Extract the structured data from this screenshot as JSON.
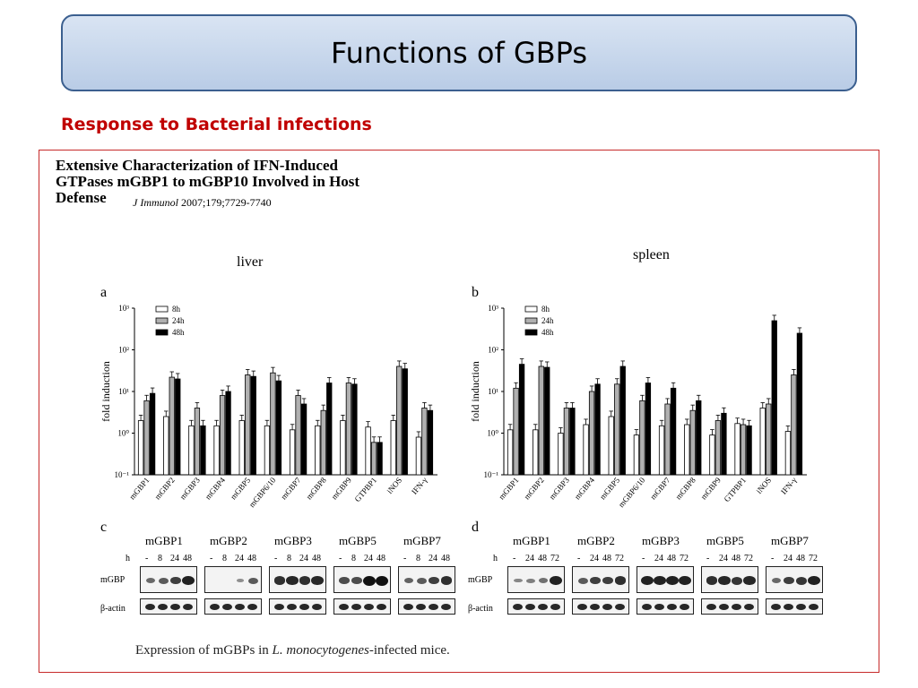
{
  "slide": {
    "title": "Functions of GBPs",
    "subheading": "Response to Bacterial infections"
  },
  "paper": {
    "title_line1": "Extensive Characterization of IFN-Induced",
    "title_line2": "GTPases mGBP1 to mGBP10 Involved in Host",
    "title_line3": "Defense",
    "journal": "J Immunol",
    "citation": "2007;179;7729-7740"
  },
  "panels": {
    "liver_title": "liver",
    "spleen_title": "spleen",
    "a": "a",
    "b": "b",
    "c": "c",
    "d": "d"
  },
  "chart_data": [
    {
      "type": "bar",
      "panel": "a",
      "title": "liver",
      "ylabel": "fold induction",
      "yscale": "log",
      "ylim": [
        0.1,
        1000
      ],
      "ytick_labels": [
        "10⁻¹",
        "10⁰",
        "10¹",
        "10²",
        "10³"
      ],
      "legend": [
        "8h",
        "24h",
        "48h"
      ],
      "series_colors": [
        "#ffffff",
        "#b0b0b0",
        "#000000"
      ],
      "categories": [
        "mGBP1",
        "mGBP2",
        "mGBP3",
        "mGBP4",
        "mGBP5",
        "mGBP6/10",
        "mGBP7",
        "mGBP8",
        "mGBP9",
        "GTPBP1",
        "iNOS",
        "IFN-γ"
      ],
      "series": [
        {
          "name": "8h",
          "values": [
            2.0,
            2.5,
            1.5,
            1.5,
            2.0,
            1.5,
            1.2,
            1.5,
            2.0,
            1.4,
            2.0,
            0.8
          ]
        },
        {
          "name": "24h",
          "values": [
            6.0,
            22,
            4.0,
            8.0,
            25,
            28,
            8.0,
            3.5,
            16,
            0.6,
            40,
            4.0
          ]
        },
        {
          "name": "48h",
          "values": [
            9.0,
            20,
            1.5,
            10,
            23,
            18,
            5.0,
            16,
            15,
            0.6,
            35,
            3.5
          ]
        }
      ]
    },
    {
      "type": "bar",
      "panel": "b",
      "title": "spleen",
      "ylabel": "fold induction",
      "yscale": "log",
      "ylim": [
        0.1,
        1000
      ],
      "ytick_labels": [
        "10⁻¹",
        "10⁰",
        "10¹",
        "10²",
        "10³"
      ],
      "legend": [
        "8h",
        "24h",
        "48h"
      ],
      "series_colors": [
        "#ffffff",
        "#b0b0b0",
        "#000000"
      ],
      "categories": [
        "mGBP1",
        "mGBP2",
        "mGBP3",
        "mGBP4",
        "mGBP5",
        "mGBP6/10",
        "mGBP7",
        "mGBP8",
        "mGBP9",
        "GTPBP1",
        "iNOS",
        "IFN-γ"
      ],
      "series": [
        {
          "name": "8h",
          "values": [
            1.2,
            1.2,
            1.0,
            1.6,
            2.5,
            0.9,
            1.5,
            1.6,
            0.9,
            1.7,
            4.0,
            1.1
          ]
        },
        {
          "name": "24h",
          "values": [
            12,
            40,
            4.0,
            10,
            15,
            6.0,
            5.0,
            3.5,
            2.0,
            1.6,
            5.0,
            25
          ]
        },
        {
          "name": "48h",
          "values": [
            45,
            38,
            4.0,
            15,
            40,
            16,
            12,
            6.0,
            3.0,
            1.5,
            500,
            250
          ]
        }
      ]
    }
  ],
  "blots": {
    "c": {
      "genes": [
        "mGBP1",
        "mGBP2",
        "mGBP3",
        "mGBP5",
        "mGBP7"
      ],
      "hours_label": "h",
      "hours": [
        "-",
        "8",
        "24",
        "48"
      ],
      "row_labels": [
        "mGBP",
        "β-actin"
      ],
      "intensities": [
        [
          0.4,
          0.5,
          0.7,
          0.9
        ],
        [
          0.0,
          0.0,
          0.15,
          0.5
        ],
        [
          0.8,
          0.85,
          0.8,
          0.85
        ],
        [
          0.6,
          0.6,
          1.0,
          1.0
        ],
        [
          0.45,
          0.5,
          0.7,
          0.8
        ]
      ]
    },
    "d": {
      "genes": [
        "mGBP1",
        "mGBP2",
        "mGBP3",
        "mGBP5",
        "mGBP7"
      ],
      "hours_label": "h",
      "hours": [
        "-",
        "24",
        "48",
        "72"
      ],
      "row_labels": [
        "mGBP",
        "β-actin"
      ],
      "intensities": [
        [
          0.2,
          0.25,
          0.35,
          0.9
        ],
        [
          0.5,
          0.7,
          0.7,
          0.8
        ],
        [
          0.9,
          0.9,
          0.9,
          0.9
        ],
        [
          0.8,
          0.85,
          0.75,
          0.85
        ],
        [
          0.4,
          0.7,
          0.75,
          0.9
        ]
      ]
    }
  },
  "caption": {
    "prefix": "Expression of mGBPs in ",
    "species": "L. monocytogenes",
    "suffix": "-infected mice."
  }
}
